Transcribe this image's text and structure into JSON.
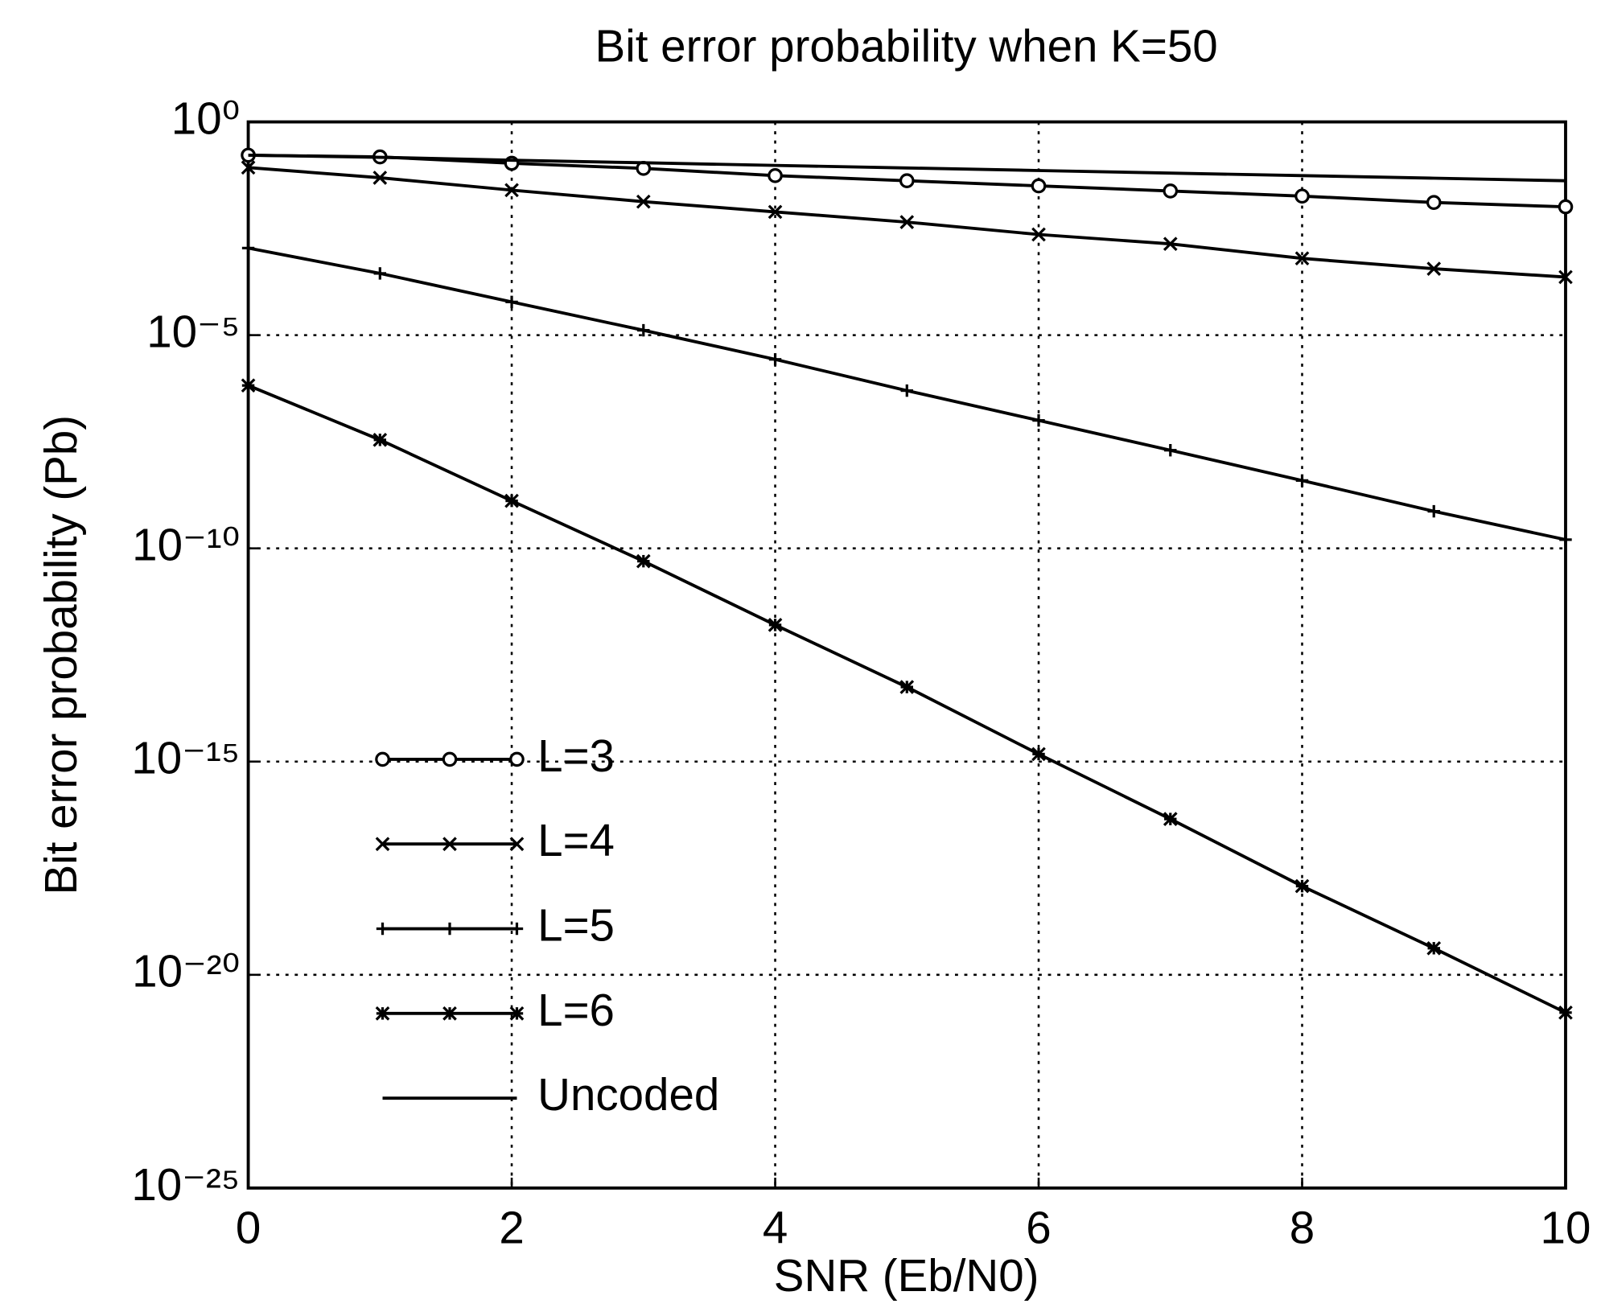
{
  "chart_data": {
    "type": "line",
    "title": "Bit error probability when K=50",
    "xlabel": "SNR (Eb/N0)",
    "ylabel": "Bit error probability (Pb)",
    "x": [
      0,
      1,
      2,
      3,
      4,
      5,
      6,
      7,
      8,
      9,
      10
    ],
    "series": [
      {
        "name": "L=3",
        "color": "#000000",
        "marker": "circle",
        "values": [
          0.166,
          0.151,
          0.107,
          0.0813,
          0.055,
          0.0417,
          0.0316,
          0.024,
          0.0182,
          0.0129,
          0.0102
        ]
      },
      {
        "name": "L=4",
        "color": "#000000",
        "marker": "x",
        "values": [
          0.0851,
          0.049,
          0.0251,
          0.0135,
          0.00776,
          0.00447,
          0.00229,
          0.00138,
          0.00063,
          0.00036,
          0.00023
        ]
      },
      {
        "name": "L=5",
        "color": "#000000",
        "marker": "plus",
        "values": [
          0.0011,
          0.00028,
          6e-05,
          1.3e-05,
          2.7e-06,
          5e-07,
          1e-07,
          2e-08,
          3.9e-09,
          7.4e-10,
          1.6e-10
        ]
      },
      {
        "name": "L=6",
        "color": "#000000",
        "marker": "star",
        "values": [
          6.6e-07,
          3.5e-08,
          1.3e-09,
          5e-11,
          1.6e-12,
          5.6e-14,
          1.5e-15,
          4.5e-17,
          1.2e-18,
          4.2e-20,
          1.3e-21
        ]
      },
      {
        "name": "Uncoded",
        "color": "#000000",
        "values": [
          0.166,
          0.148,
          0.126,
          0.11,
          0.0955,
          0.0832,
          0.0724,
          0.0631,
          0.055,
          0.0479,
          0.0417
        ]
      }
    ],
    "xlim": [
      0,
      10
    ],
    "xticks": [
      0,
      2,
      4,
      6,
      8,
      10
    ],
    "ylim": [
      1e-25,
      1
    ],
    "log_y": true,
    "yticks": [
      {
        "value": 1,
        "label": "10⁰"
      },
      {
        "value": 1e-05,
        "label": "10⁻⁵"
      },
      {
        "value": 1e-10,
        "label": "10⁻¹⁰"
      },
      {
        "value": 1e-15,
        "label": "10⁻¹⁵"
      },
      {
        "value": 1e-20,
        "label": "10⁻²⁰"
      },
      {
        "value": 1e-25,
        "label": "10⁻²⁵"
      }
    ],
    "grid": true,
    "legend": "lower left"
  }
}
